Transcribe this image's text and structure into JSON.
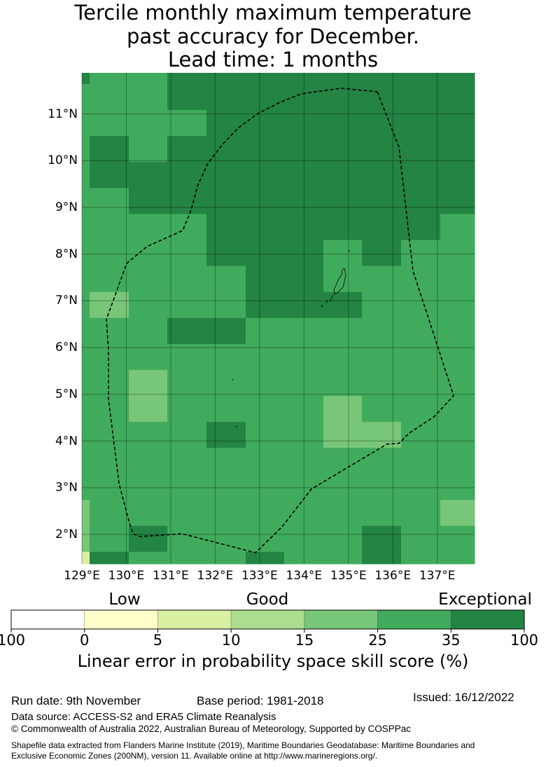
{
  "title": [
    "Tercile monthly maximum temperature",
    "past accuracy for December.",
    "Lead time: 1 months"
  ],
  "axes": {
    "lat_labels": [
      "11°N",
      "10°N",
      "9°N",
      "8°N",
      "7°N",
      "6°N",
      "5°N",
      "4°N",
      "3°N",
      "2°N"
    ],
    "lat_values": [
      11,
      10,
      9,
      8,
      7,
      6,
      5,
      4,
      3,
      2
    ],
    "lon_labels": [
      "129°E",
      "130°E",
      "131°E",
      "132°E",
      "133°E",
      "134°E",
      "135°E",
      "136°E",
      "137°E"
    ],
    "lon_values": [
      129,
      130,
      131,
      132,
      133,
      134,
      135,
      136,
      137
    ]
  },
  "map_data": {
    "extent": {
      "lon_min": 129,
      "lon_max": 137.84,
      "lat_min": 1.37,
      "lat_max": 11.88
    },
    "category_colors": {
      "0": "#ffffff",
      "1": "#ffffcc",
      "2": "#d9f0a3",
      "3": "#addd8e",
      "4": "#78c679",
      "5": "#41ab5d",
      "6": "#238443"
    },
    "grid_rows_north_to_south": [
      "65566666666",
      "55566666666",
      "55556666666",
      "56566666666",
      "56666666666",
      "55666666666",
      "55556666665",
      "55556665655",
      "55555665555",
      "54555666555",
      "55566555555",
      "55555555555",
      "55455555555",
      "55455554555",
      "55556554455",
      "55555555555",
      "55555555555",
      "45555555554",
      "45655555655",
      "26555655655"
    ]
  },
  "legend": {
    "categories": [
      "Low",
      "Good",
      "Exceptional"
    ],
    "ticks": [
      "100",
      "0",
      "5",
      "10",
      "15",
      "25",
      "35",
      "100"
    ],
    "colors": [
      "#ffffff",
      "#ffffcc",
      "#d9f0a3",
      "#addd8e",
      "#78c679",
      "#41ab5d",
      "#238443"
    ],
    "label": "Linear error in probability space skill score (%)"
  },
  "footer": {
    "run_date": "Run date: 9th November",
    "base_period": "Base period: 1981-2018",
    "issued": "Issued: 16/12/2022",
    "data_source": "Data source: ACCESS-S2 and ERA5 Climate Reanalysis",
    "copyright": "© Commonwealth of Australia 2022, Australian Bureau of Meteorology, Supported by COSPPac",
    "shapefile_1": "Shapefile data extracted from Flanders Marine Institute (2019), Maritime Boundaries Geodatabase: Maritime Boundaries and",
    "shapefile_2": "Exclusive Economic Zones (200NM), version 11. Available online at http://www.marineregions.org/."
  }
}
